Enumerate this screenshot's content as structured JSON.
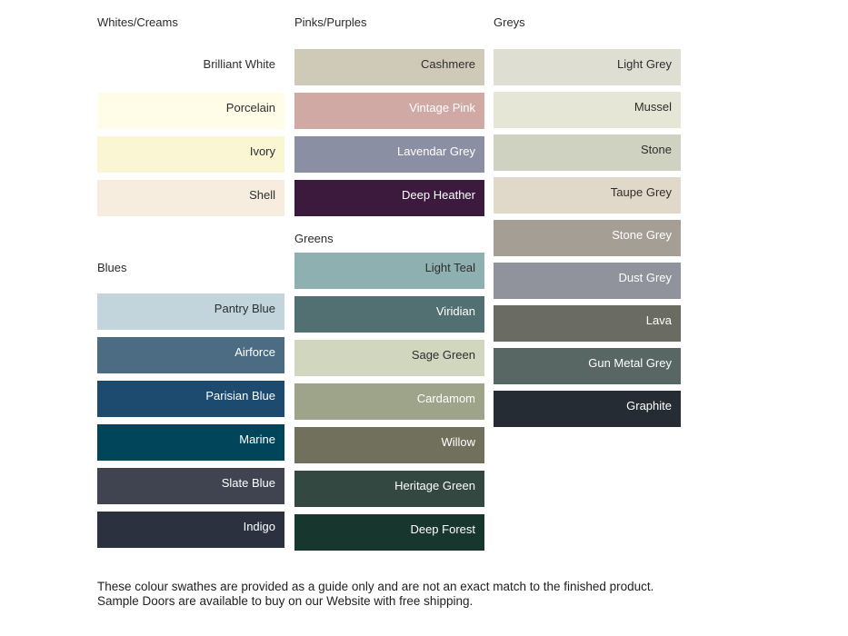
{
  "page": {
    "background": "#ffffff"
  },
  "text_colors": {
    "dark": "#2e2e2e",
    "light": "#ffffff"
  },
  "columns": [
    {
      "sections": [
        {
          "heading": "Whites/Creams",
          "swatches": [
            {
              "label": "Brilliant White",
              "color": "#ffffff",
              "text": "dark"
            },
            {
              "label": "Porcelain",
              "color": "#fffce7",
              "text": "dark"
            },
            {
              "label": "Ivory",
              "color": "#faf5d3",
              "text": "dark"
            },
            {
              "label": "Shell",
              "color": "#f6edde",
              "text": "dark"
            }
          ]
        },
        {
          "heading": "Blues",
          "swatches": [
            {
              "label": "Pantry Blue",
              "color": "#c3d5dc",
              "text": "dark"
            },
            {
              "label": "Airforce",
              "color": "#4c6c84",
              "text": "light"
            },
            {
              "label": "Parisian Blue",
              "color": "#1d4b70",
              "text": "light"
            },
            {
              "label": "Marine",
              "color": "#01455a",
              "text": "light"
            },
            {
              "label": "Slate Blue",
              "color": "#3f4450",
              "text": "light"
            },
            {
              "label": "Indigo",
              "color": "#2b313f",
              "text": "light"
            }
          ]
        }
      ]
    },
    {
      "sections": [
        {
          "heading": "Pinks/Purples",
          "swatches": [
            {
              "label": "Cashmere",
              "color": "#cfc9b8",
              "text": "dark"
            },
            {
              "label": "Vintage Pink",
              "color": "#d0a8a4",
              "text": "light"
            },
            {
              "label": "Lavendar Grey",
              "color": "#8b8fa3",
              "text": "light"
            },
            {
              "label": "Deep Heather",
              "color": "#3b1a3e",
              "text": "light"
            }
          ]
        },
        {
          "heading": "Greens",
          "swatches": [
            {
              "label": "Light Teal",
              "color": "#8fb0b0",
              "text": "dark"
            },
            {
              "label": "Viridian",
              "color": "#527072",
              "text": "light"
            },
            {
              "label": "Sage Green",
              "color": "#d1d6bf",
              "text": "dark"
            },
            {
              "label": "Cardamom",
              "color": "#9da489",
              "text": "light"
            },
            {
              "label": "Willow",
              "color": "#71705c",
              "text": "light"
            },
            {
              "label": "Heritage Green",
              "color": "#334840",
              "text": "light"
            },
            {
              "label": "Deep Forest",
              "color": "#17362e",
              "text": "light"
            }
          ]
        }
      ]
    },
    {
      "sections": [
        {
          "heading": "Greys",
          "swatches": [
            {
              "label": "Light Grey",
              "color": "#dedfd2",
              "text": "dark"
            },
            {
              "label": "Mussel",
              "color": "#e5e6d5",
              "text": "dark"
            },
            {
              "label": "Stone",
              "color": "#cfd2c0",
              "text": "dark"
            },
            {
              "label": "Taupe Grey",
              "color": "#e0d8c9",
              "text": "dark"
            },
            {
              "label": "Stone Grey",
              "color": "#a49e95",
              "text": "light"
            },
            {
              "label": "Dust Grey",
              "color": "#90939b",
              "text": "light"
            },
            {
              "label": "Lava",
              "color": "#6a6b63",
              "text": "light"
            },
            {
              "label": "Gun Metal Grey",
              "color": "#586763",
              "text": "light"
            },
            {
              "label": "Graphite",
              "color": "#262c33",
              "text": "light"
            }
          ]
        }
      ]
    }
  ],
  "footer": {
    "text": "These colour swathes are provided as a guide only and are not an exact match to the finished product.  Sample Doors are available to buy on our Website with free shipping."
  }
}
